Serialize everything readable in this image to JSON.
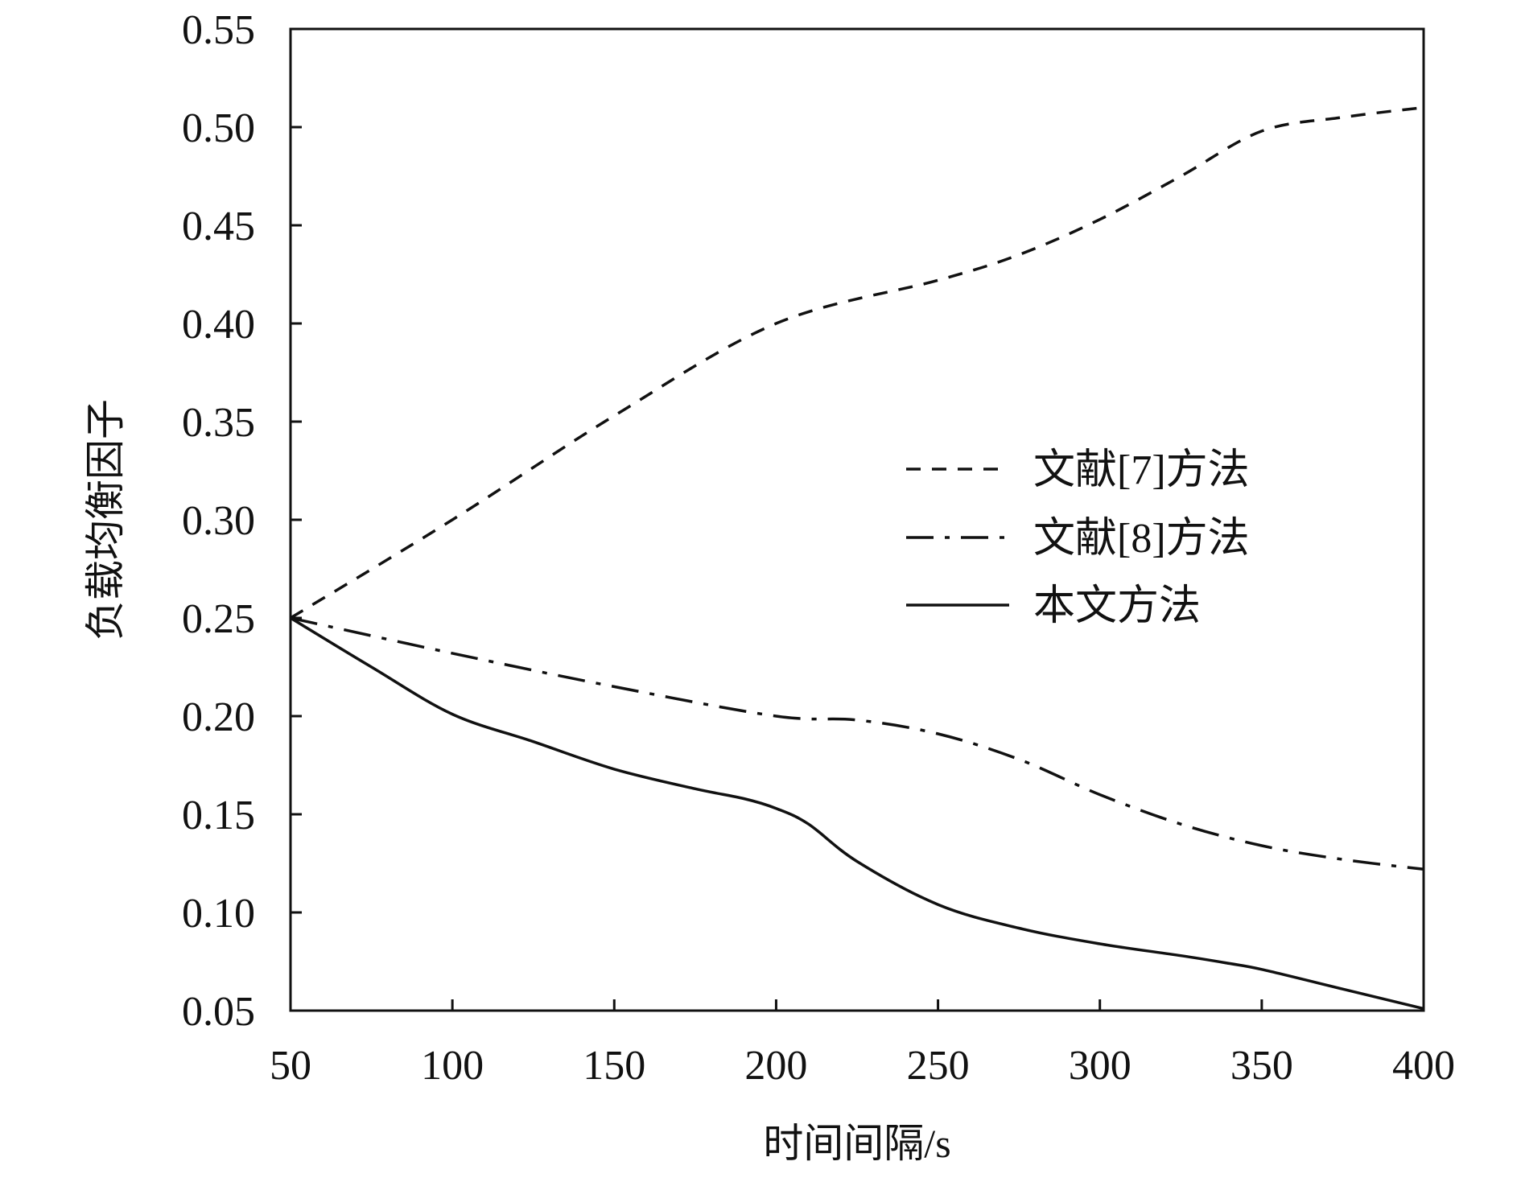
{
  "chart_data": {
    "type": "line",
    "title": "",
    "xlabel": "时间间隔/s",
    "ylabel": "负载均衡因子",
    "xlim": [
      50,
      400
    ],
    "ylim": [
      0.05,
      0.55
    ],
    "xticks": [
      50,
      100,
      150,
      200,
      250,
      300,
      350,
      400
    ],
    "yticks": [
      0.05,
      0.1,
      0.15,
      0.2,
      0.25,
      0.3,
      0.35,
      0.4,
      0.45,
      0.5,
      0.55
    ],
    "xtick_labels": [
      "50",
      "100",
      "150",
      "200",
      "250",
      "300",
      "350",
      "400"
    ],
    "ytick_labels": [
      "0.05",
      "0.10",
      "0.15",
      "0.20",
      "0.25",
      "0.30",
      "0.35",
      "0.40",
      "0.45",
      "0.50",
      "0.55"
    ],
    "grid": false,
    "legend_position": "center-right",
    "series": [
      {
        "name": "文献[7]方法",
        "style": "dashed",
        "color": "#111111",
        "x": [
          50,
          100,
          150,
          200,
          250,
          275,
          300,
          325,
          350,
          375,
          400
        ],
        "y": [
          0.25,
          0.3,
          0.353,
          0.4,
          0.422,
          0.435,
          0.453,
          0.475,
          0.498,
          0.505,
          0.51
        ]
      },
      {
        "name": "文献[8]方法",
        "style": "dash-dot",
        "color": "#111111",
        "x": [
          50,
          100,
          150,
          200,
          225,
          250,
          275,
          300,
          325,
          350,
          375,
          400
        ],
        "y": [
          0.25,
          0.232,
          0.215,
          0.2,
          0.198,
          0.191,
          0.178,
          0.16,
          0.145,
          0.134,
          0.127,
          0.122
        ]
      },
      {
        "name": "本文方法",
        "style": "solid",
        "color": "#111111",
        "x": [
          50,
          75,
          100,
          125,
          150,
          175,
          190,
          200,
          210,
          225,
          250,
          275,
          300,
          325,
          340,
          350,
          375,
          400
        ],
        "y": [
          0.25,
          0.225,
          0.201,
          0.187,
          0.173,
          0.163,
          0.158,
          0.153,
          0.145,
          0.126,
          0.104,
          0.092,
          0.084,
          0.078,
          0.074,
          0.071,
          0.061,
          0.051
        ]
      }
    ]
  }
}
